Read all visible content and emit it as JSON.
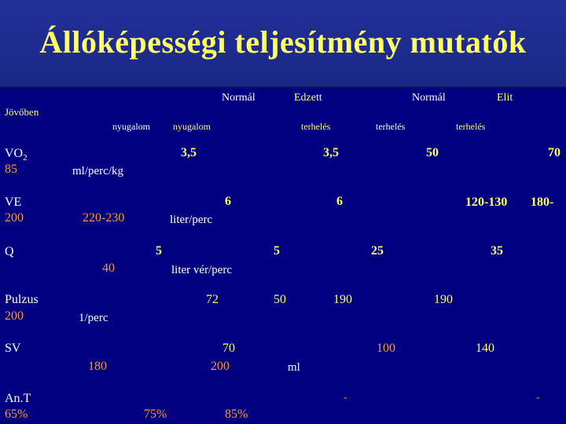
{
  "title": "Állóképességi teljesítmény mutatók",
  "headers": {
    "normal1": "Normál",
    "trained": "Edzett",
    "normal2": "Normál",
    "elite": "Elit",
    "future": "Jövőben",
    "rest1": "nyugalom",
    "rest2": "nyugalom",
    "load1": "terhelés",
    "load2": "terhelés",
    "load3": "terhelés"
  },
  "rows": {
    "vo2": {
      "label": "VO",
      "sub": "2",
      "future": "85",
      "unit": "ml/perc/kg",
      "v1": "3,5",
      "v2": "3,5",
      "v3": "50",
      "v4": "70"
    },
    "ve": {
      "label": "VE",
      "future": "200",
      "unit": "liter/perc",
      "v1": "220-230",
      "v2": "6",
      "v3": "6",
      "v4": "120-130",
      "v5": "180-"
    },
    "q": {
      "label": "Q",
      "unit": "liter vér/perc",
      "v1": "40",
      "v2": "5",
      "v3": "5",
      "v4": "25",
      "v5": "35"
    },
    "pulse": {
      "label": "Pulzus",
      "future": "200",
      "unit": "1/perc",
      "v1": "72",
      "v2": "50",
      "v3": "190",
      "v4": "190"
    },
    "sv": {
      "label": "SV",
      "unit": "ml",
      "v1": "180",
      "v2": "70",
      "v3": "200",
      "v4": "100",
      "v5": "140"
    },
    "ant": {
      "label": "An.T",
      "future": "65%",
      "v1": "75%",
      "v2": "85%",
      "dash1": "-",
      "dash2": "-"
    }
  }
}
